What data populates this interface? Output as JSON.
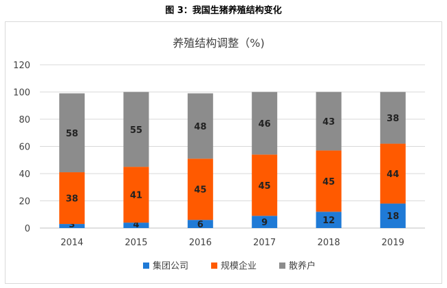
{
  "figure_caption": "图 3：我国生猪养殖结构变化",
  "chart_data": {
    "type": "bar",
    "stacked": true,
    "title": "养殖结构调整（%)",
    "categories": [
      "2014",
      "2015",
      "2016",
      "2017",
      "2018",
      "2019"
    ],
    "series": [
      {
        "name": "集团公司",
        "color": "#1f7ad6",
        "values": [
          3,
          4,
          6,
          9,
          12,
          18
        ]
      },
      {
        "name": "规模企业",
        "color": "#ff5a00",
        "values": [
          38,
          41,
          45,
          45,
          45,
          44
        ]
      },
      {
        "name": "散养户",
        "color": "#8c8c8c",
        "values": [
          58,
          55,
          48,
          46,
          43,
          38
        ]
      }
    ],
    "ylim": [
      0,
      120
    ],
    "yticks": [
      "0",
      "20",
      "40",
      "60",
      "80",
      "100",
      "120"
    ],
    "grid": true,
    "legend_position": "bottom"
  }
}
